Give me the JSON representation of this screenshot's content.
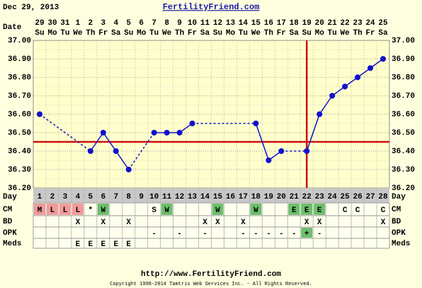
{
  "header": {
    "date": "Dec 29, 2013",
    "site": "FertilityFriend.com"
  },
  "chart_data": {
    "type": "line",
    "date_label": "Date",
    "dates": [
      29,
      30,
      31,
      1,
      2,
      3,
      4,
      5,
      6,
      7,
      8,
      9,
      10,
      11,
      12,
      13,
      14,
      15,
      16,
      17,
      18,
      19,
      20,
      21,
      22,
      23,
      24,
      25
    ],
    "weekdays": [
      "Su",
      "Mo",
      "Tu",
      "We",
      "Th",
      "Fr",
      "Sa",
      "Su",
      "Mo",
      "Tu",
      "We",
      "Th",
      "Fr",
      "Sa",
      "Su",
      "Mo",
      "Tu",
      "We",
      "Th",
      "Fr",
      "Sa",
      "Su",
      "Mo",
      "Tu",
      "We",
      "Th",
      "Fr",
      "Sa"
    ],
    "day_label": "Day",
    "categories": [
      1,
      2,
      3,
      4,
      5,
      6,
      7,
      8,
      9,
      10,
      11,
      12,
      13,
      14,
      15,
      16,
      17,
      18,
      19,
      20,
      21,
      22,
      23,
      24,
      25,
      26,
      27,
      28
    ],
    "values": [
      36.6,
      null,
      null,
      null,
      36.4,
      36.5,
      36.4,
      36.3,
      null,
      36.5,
      36.5,
      36.5,
      36.55,
      null,
      null,
      null,
      null,
      36.55,
      36.35,
      36.4,
      null,
      36.4,
      36.6,
      36.7,
      36.75,
      36.8,
      36.85,
      36.9
    ],
    "color": "#1010cc",
    "ylim": [
      36.2,
      37.0
    ],
    "yticks": [
      {
        "value": 36.2,
        "label": "36.20"
      },
      {
        "value": 36.3,
        "label": "36.30"
      },
      {
        "value": 36.4,
        "label": "36.40"
      },
      {
        "value": 36.5,
        "label": "36.50"
      },
      {
        "value": 36.6,
        "label": "36.60"
      },
      {
        "value": 36.7,
        "label": "36.70"
      },
      {
        "value": 36.8,
        "label": "36.80"
      },
      {
        "value": 36.9,
        "label": "36.90"
      },
      {
        "value": 37.0,
        "label": "37.00"
      }
    ],
    "grid": true,
    "coverline": 36.45,
    "ovulation_day": 22,
    "marker_color": "#cc1111",
    "rows": [
      {
        "label": "CM",
        "cells": [
          "M",
          "L",
          "L",
          "L",
          "*",
          "W",
          null,
          null,
          null,
          "S",
          "W",
          null,
          null,
          null,
          "W",
          null,
          null,
          "W",
          null,
          null,
          "E",
          "E",
          "E",
          null,
          "C",
          "C",
          null,
          "C"
        ],
        "colors": {
          "M": "#f29a9a",
          "L": "#f29a9a",
          "W": "#6cbf6c",
          "E": "#6cbf6c"
        }
      },
      {
        "label": "BD",
        "cells": [
          null,
          null,
          null,
          "X",
          null,
          "X",
          null,
          "X",
          null,
          null,
          null,
          null,
          null,
          "X",
          "X",
          null,
          "X",
          null,
          null,
          null,
          null,
          "X",
          "X",
          null,
          null,
          null,
          null,
          "X"
        ],
        "colors": {}
      },
      {
        "label": "OPK",
        "cells": [
          null,
          null,
          null,
          null,
          null,
          null,
          null,
          null,
          null,
          "-",
          null,
          "-",
          null,
          "-",
          null,
          null,
          "-",
          "-",
          "-",
          "-",
          "-",
          "+",
          "-",
          null,
          null,
          null,
          null,
          null
        ],
        "colors": {
          "+": "#6cbf6c"
        }
      },
      {
        "label": "Meds",
        "cells": [
          null,
          null,
          null,
          "E",
          "E",
          "E",
          "E",
          "E",
          null,
          null,
          null,
          null,
          null,
          null,
          null,
          null,
          null,
          null,
          null,
          null,
          null,
          null,
          null,
          null,
          null,
          null,
          null,
          null
        ],
        "colors": {}
      }
    ]
  },
  "footer": {
    "url": "http://www.FertilityFriend.com",
    "copyright": "Copyright 1998-2014 Tamtris Web Services Inc. - All Rights Reserved."
  }
}
